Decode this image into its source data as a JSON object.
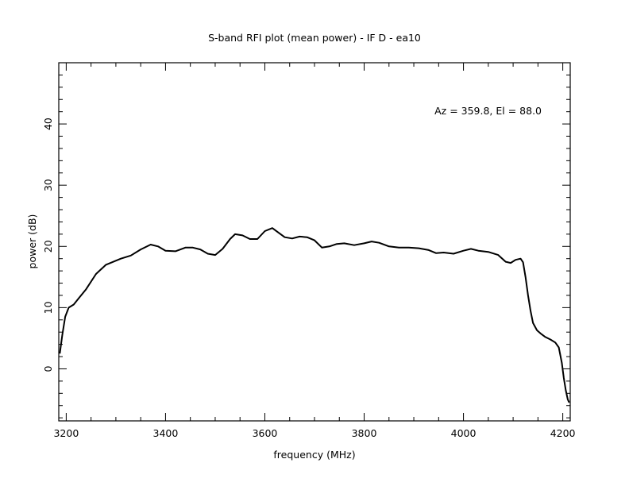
{
  "chart_data": {
    "type": "line",
    "title": "S-band RFI plot (mean power) - IF D - ea10",
    "xlabel": "frequency (MHz)",
    "ylabel": "power (dB)",
    "annotation": "Az = 359.8, El = 88.0",
    "xlim": [
      3185,
      4215
    ],
    "ylim": [
      -8.5,
      50
    ],
    "x_ticks": [
      3200,
      3400,
      3600,
      3800,
      4000,
      4200
    ],
    "y_ticks": [
      0,
      10,
      20,
      30,
      40
    ],
    "grid": false,
    "line_color": "#000000",
    "series": [
      {
        "x": [
          3187,
          3192,
          3198,
          3205,
          3215,
          3225,
          3240,
          3260,
          3280,
          3295,
          3310,
          3330,
          3350,
          3370,
          3385,
          3400,
          3420,
          3440,
          3455,
          3470,
          3485,
          3500,
          3515,
          3530,
          3540,
          3555,
          3570,
          3585,
          3600,
          3615,
          3625,
          3640,
          3655,
          3670,
          3685,
          3700,
          3715,
          3730,
          3745,
          3760,
          3780,
          3800,
          3815,
          3830,
          3850,
          3870,
          3890,
          3910,
          3930,
          3945,
          3960,
          3980,
          4000,
          4015,
          4030,
          4050,
          4070,
          4085,
          4095,
          4105,
          4115,
          4120,
          4125,
          4130,
          4135,
          4140,
          4148,
          4155,
          4165,
          4175,
          4185,
          4192,
          4198,
          4202,
          4206,
          4210,
          4213
        ],
        "y": [
          2.5,
          5.5,
          8.5,
          10.0,
          10.5,
          11.5,
          13.0,
          15.5,
          17.0,
          17.5,
          18.0,
          18.5,
          19.5,
          20.3,
          20.0,
          19.3,
          19.2,
          19.8,
          19.8,
          19.5,
          18.8,
          18.6,
          19.6,
          21.2,
          22.0,
          21.8,
          21.2,
          21.2,
          22.5,
          23.0,
          22.4,
          21.5,
          21.3,
          21.6,
          21.5,
          21.0,
          19.8,
          20.0,
          20.4,
          20.5,
          20.2,
          20.5,
          20.8,
          20.6,
          20.0,
          19.8,
          19.8,
          19.7,
          19.4,
          18.9,
          19.0,
          18.8,
          19.3,
          19.6,
          19.3,
          19.1,
          18.6,
          17.5,
          17.3,
          17.8,
          18.0,
          17.4,
          15.0,
          12.0,
          9.5,
          7.5,
          6.3,
          5.8,
          5.2,
          4.8,
          4.3,
          3.5,
          1.0,
          -1.5,
          -3.5,
          -5.0,
          -5.5
        ]
      }
    ]
  }
}
